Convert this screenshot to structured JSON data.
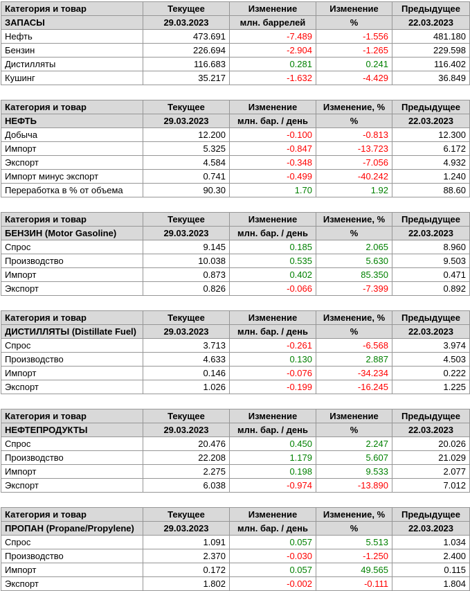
{
  "colors": {
    "positive": "#008000",
    "negative": "#ff0000",
    "header_bg": "#d9d9d9",
    "border": "#969696",
    "text": "#000000"
  },
  "chart_data": [
    {
      "type": "table",
      "name": "inventories",
      "title": "ЗАПАСЫ",
      "columns": [
        "Категория и товар",
        "Текущее",
        "Изменение",
        "Изменение",
        "Предыдущее"
      ],
      "subheader": [
        "ЗАПАСЫ",
        "29.03.2023",
        "млн. баррелей",
        "%",
        "22.03.2023"
      ],
      "rows": [
        [
          "Нефть",
          "473.691",
          "-7.489",
          "-1.556",
          "481.180"
        ],
        [
          "Бензин",
          "226.694",
          "-2.904",
          "-1.265",
          "229.598"
        ],
        [
          "Дистилляты",
          "116.683",
          "0.281",
          "0.241",
          "116.402"
        ],
        [
          "Кушинг",
          "35.217",
          "-1.632",
          "-4.429",
          "36.849"
        ]
      ]
    },
    {
      "type": "table",
      "name": "crude-oil",
      "title": "НЕФТЬ",
      "columns": [
        "Категория и товар",
        "Текущее",
        "Изменение",
        "Изменение, %",
        "Предыдущее"
      ],
      "subheader": [
        "НЕФТЬ",
        "29.03.2023",
        "млн. бар. / день",
        "%",
        "22.03.2023"
      ],
      "rows": [
        [
          "Добыча",
          "12.200",
          "-0.100",
          "-0.813",
          "12.300"
        ],
        [
          "Импорт",
          "5.325",
          "-0.847",
          "-13.723",
          "6.172"
        ],
        [
          "Экспорт",
          "4.584",
          "-0.348",
          "-7.056",
          "4.932"
        ],
        [
          "Импорт минус экспорт",
          "0.741",
          "-0.499",
          "-40.242",
          "1.240"
        ],
        [
          "Переработка в % от объема",
          "90.30",
          "1.70",
          "1.92",
          "88.60"
        ]
      ]
    },
    {
      "type": "table",
      "name": "gasoline",
      "title": "БЕНЗИН (Motor Gasoline)",
      "columns": [
        "Категория и товар",
        "Текущее",
        "Изменение",
        "Изменение, %",
        "Предыдущее"
      ],
      "subheader": [
        "БЕНЗИН (Motor Gasoline)",
        "29.03.2023",
        "млн. бар. / день",
        "%",
        "22.03.2023"
      ],
      "rows": [
        [
          "Спрос",
          "9.145",
          "0.185",
          "2.065",
          "8.960"
        ],
        [
          "Производство",
          "10.038",
          "0.535",
          "5.630",
          "9.503"
        ],
        [
          "Импорт",
          "0.873",
          "0.402",
          "85.350",
          "0.471"
        ],
        [
          "Экспорт",
          "0.826",
          "-0.066",
          "-7.399",
          "0.892"
        ]
      ]
    },
    {
      "type": "table",
      "name": "distillates",
      "title": "ДИСТИЛЛЯТЫ (Distillate Fuel)",
      "columns": [
        "Категория и товар",
        "Текущее",
        "Изменение",
        "Изменение, %",
        "Предыдущее"
      ],
      "subheader": [
        "ДИСТИЛЛЯТЫ (Distillate Fuel)",
        "29.03.2023",
        "млн. бар. / день",
        "%",
        "22.03.2023"
      ],
      "rows": [
        [
          "Спрос",
          "3.713",
          "-0.261",
          "-6.568",
          "3.974"
        ],
        [
          "Производство",
          "4.633",
          "0.130",
          "2.887",
          "4.503"
        ],
        [
          "Импорт",
          "0.146",
          "-0.076",
          "-34.234",
          "0.222"
        ],
        [
          "Экспорт",
          "1.026",
          "-0.199",
          "-16.245",
          "1.225"
        ]
      ]
    },
    {
      "type": "table",
      "name": "petroleum-products",
      "title": "НЕФТЕПРОДУКТЫ",
      "columns": [
        "Категория и товар",
        "Текущее",
        "Изменение",
        "Изменение",
        "Предыдущее"
      ],
      "subheader": [
        "НЕФТЕПРОДУКТЫ",
        "29.03.2023",
        "млн. бар. / день",
        "%",
        "22.03.2023"
      ],
      "rows": [
        [
          "Спрос",
          "20.476",
          "0.450",
          "2.247",
          "20.026"
        ],
        [
          "Производство",
          "22.208",
          "1.179",
          "5.607",
          "21.029"
        ],
        [
          "Импорт",
          "2.275",
          "0.198",
          "9.533",
          "2.077"
        ],
        [
          "Экспорт",
          "6.038",
          "-0.974",
          "-13.890",
          "7.012"
        ]
      ]
    },
    {
      "type": "table",
      "name": "propane",
      "title": "ПРОПАН (Propane/Propylene)",
      "columns": [
        "Категория и товар",
        "Текущее",
        "Изменение",
        "Изменение, %",
        "Предыдущее"
      ],
      "subheader": [
        "ПРОПАН (Propane/Propylene)",
        "29.03.2023",
        "млн. бар. / день",
        "%",
        "22.03.2023"
      ],
      "rows": [
        [
          "Спрос",
          "1.091",
          "0.057",
          "5.513",
          "1.034"
        ],
        [
          "Производство",
          "2.370",
          "-0.030",
          "-1.250",
          "2.400"
        ],
        [
          "Импорт",
          "0.172",
          "0.057",
          "49.565",
          "0.115"
        ],
        [
          "Экспорт",
          "1.802",
          "-0.002",
          "-0.111",
          "1.804"
        ]
      ]
    }
  ]
}
